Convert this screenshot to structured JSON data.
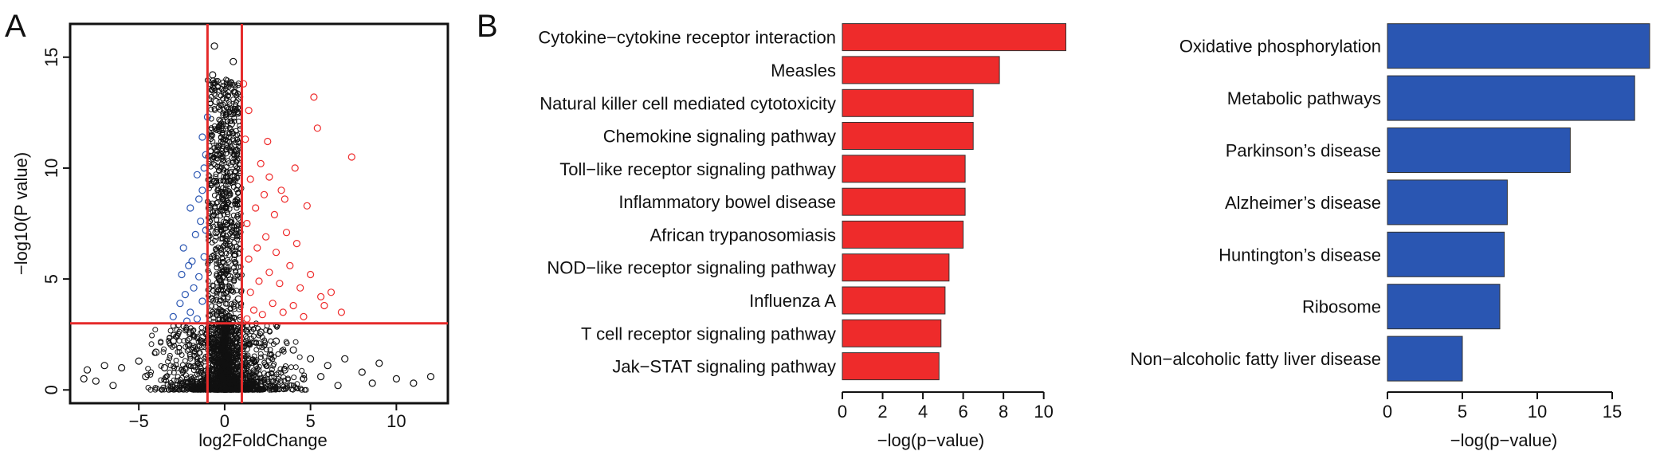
{
  "panel_labels": {
    "a": "A",
    "b": "B"
  },
  "colors": {
    "red": "#ee2b2b",
    "blue": "#2a56b2",
    "black": "#111111",
    "threshold": "#e52a2a"
  },
  "chart_data": [
    {
      "type": "scatter",
      "title": "",
      "xlabel": "log2FoldChange",
      "ylabel": "−log10(P value)",
      "xlim": [
        -9,
        13
      ],
      "ylim": [
        -0.6,
        16.5
      ],
      "xticks": [
        "−5",
        "0",
        "5",
        "10"
      ],
      "xtick_values": [
        -5,
        0,
        5,
        10
      ],
      "yticks": [
        "0",
        "5",
        "10",
        "15"
      ],
      "ytick_values": [
        0,
        5,
        10,
        15
      ],
      "thresholds": {
        "x": [
          -1,
          1
        ],
        "y": 3
      },
      "grid": false,
      "series": [
        {
          "role": "down",
          "color": "#2a56b2",
          "points": [
            [
              -1.6,
              3.2
            ],
            [
              -2.0,
              3.5
            ],
            [
              -1.3,
              4.0
            ],
            [
              -1.8,
              4.6
            ],
            [
              -2.3,
              4.3
            ],
            [
              -1.5,
              5.1
            ],
            [
              -2.1,
              5.6
            ],
            [
              -1.2,
              6.0
            ],
            [
              -2.4,
              6.4
            ],
            [
              -1.7,
              7.0
            ],
            [
              -1.4,
              7.6
            ],
            [
              -2.0,
              8.2
            ],
            [
              -1.3,
              9.0
            ],
            [
              -1.6,
              9.7
            ],
            [
              -1.1,
              10.6
            ],
            [
              -1.3,
              11.4
            ],
            [
              -1.0,
              12.3
            ],
            [
              -2.6,
              3.9
            ],
            [
              -3.0,
              3.3
            ],
            [
              -2.2,
              3.1
            ],
            [
              -1.9,
              5.8
            ],
            [
              -1.1,
              7.2
            ],
            [
              -1.5,
              8.6
            ],
            [
              -2.5,
              5.2
            ],
            [
              -1.2,
              10.0
            ]
          ]
        },
        {
          "role": "up",
          "color": "#ee2b2b",
          "points": [
            [
              1.3,
              3.2
            ],
            [
              1.7,
              3.6
            ],
            [
              2.2,
              3.4
            ],
            [
              2.8,
              3.9
            ],
            [
              3.4,
              3.5
            ],
            [
              4.0,
              3.8
            ],
            [
              4.6,
              3.3
            ],
            [
              1.5,
              4.4
            ],
            [
              2.0,
              4.9
            ],
            [
              2.6,
              5.3
            ],
            [
              3.2,
              4.8
            ],
            [
              3.8,
              5.6
            ],
            [
              4.4,
              4.6
            ],
            [
              5.0,
              5.2
            ],
            [
              5.6,
              4.2
            ],
            [
              1.4,
              5.9
            ],
            [
              1.9,
              6.4
            ],
            [
              2.4,
              6.9
            ],
            [
              3.0,
              6.2
            ],
            [
              3.6,
              7.1
            ],
            [
              4.2,
              6.6
            ],
            [
              1.3,
              7.5
            ],
            [
              1.8,
              8.2
            ],
            [
              2.3,
              8.8
            ],
            [
              2.9,
              7.9
            ],
            [
              3.5,
              8.6
            ],
            [
              1.5,
              9.5
            ],
            [
              2.1,
              10.2
            ],
            [
              1.2,
              11.3
            ],
            [
              1.4,
              12.6
            ],
            [
              1.1,
              13.8
            ],
            [
              2.6,
              9.6
            ],
            [
              3.3,
              9.0
            ],
            [
              4.8,
              8.3
            ],
            [
              4.1,
              10.0
            ],
            [
              6.2,
              4.4
            ],
            [
              5.2,
              13.2
            ],
            [
              5.4,
              11.8
            ],
            [
              7.4,
              10.5
            ],
            [
              2.5,
              11.2
            ],
            [
              6.8,
              3.5
            ],
            [
              5.8,
              3.8
            ]
          ]
        },
        {
          "role": "not-significant",
          "color": "#111111",
          "points": [
            [
              -0.6,
              15.5
            ],
            [
              -0.7,
              14.2
            ],
            [
              -0.5,
              13.0
            ],
            [
              -0.8,
              11.7
            ],
            [
              -0.4,
              10.6
            ],
            [
              -0.6,
              9.4
            ],
            [
              -0.9,
              8.2
            ],
            [
              -0.5,
              7.1
            ],
            [
              -0.7,
              6.0
            ],
            [
              -0.3,
              5.0
            ],
            [
              0.5,
              14.8
            ],
            [
              0.6,
              13.4
            ],
            [
              0.4,
              12.0
            ],
            [
              0.7,
              10.8
            ],
            [
              0.5,
              9.6
            ],
            [
              0.8,
              8.4
            ],
            [
              0.4,
              7.3
            ],
            [
              0.6,
              6.1
            ],
            [
              0.3,
              5.1
            ],
            [
              0.8,
              4.1
            ],
            [
              -0.8,
              4.1
            ],
            [
              -2.0,
              2.6
            ],
            [
              -3.0,
              2.2
            ],
            [
              -4.0,
              1.7
            ],
            [
              -5.0,
              1.3
            ],
            [
              -6.0,
              1.0
            ],
            [
              -7.0,
              1.1
            ],
            [
              -8.0,
              0.9
            ],
            [
              -8.2,
              0.5
            ],
            [
              2.1,
              2.6
            ],
            [
              3.0,
              2.2
            ],
            [
              4.0,
              1.8
            ],
            [
              5.0,
              1.4
            ],
            [
              6.0,
              1.1
            ],
            [
              7.0,
              1.4
            ],
            [
              8.0,
              0.8
            ],
            [
              9.0,
              1.2
            ],
            [
              10.0,
              0.5
            ],
            [
              11.0,
              0.3
            ],
            [
              12.0,
              0.6
            ],
            [
              -6.5,
              0.2
            ],
            [
              -7.5,
              0.4
            ],
            [
              6.6,
              0.2
            ],
            [
              5.6,
              0.6
            ],
            [
              8.6,
              0.3
            ],
            [
              -4.6,
              0.6
            ],
            [
              4.6,
              0.5
            ],
            [
              -3.5,
              1.0
            ],
            [
              3.5,
              0.9
            ]
          ]
        }
      ]
    },
    {
      "type": "bar",
      "orientation": "horizontal",
      "title": "",
      "xlabel": "−log(p−value)",
      "ylabel": "",
      "xlim": [
        0,
        11.2
      ],
      "xticks": [
        0,
        2,
        4,
        6,
        8,
        10
      ],
      "color": "#ee2b2b",
      "categories": [
        "Cytokine−cytokine receptor interaction",
        "Measles",
        "Natural killer cell mediated cytotoxicity",
        "Chemokine signaling pathway",
        "Toll−like receptor signaling pathway",
        "Inflammatory bowel disease",
        "African trypanosomiasis",
        "NOD−like receptor signaling pathway",
        "Influenza A",
        "T cell receptor signaling pathway",
        "Jak−STAT signaling pathway"
      ],
      "values": [
        11.1,
        7.8,
        6.5,
        6.5,
        6.1,
        6.1,
        6.0,
        5.3,
        5.1,
        4.9,
        4.8
      ]
    },
    {
      "type": "bar",
      "orientation": "horizontal",
      "title": "",
      "xlabel": "−log(p−value)",
      "ylabel": "",
      "xlim": [
        0,
        17.5
      ],
      "xticks": [
        0,
        5,
        10,
        15
      ],
      "color": "#2a56b2",
      "categories": [
        "Oxidative phosphorylation",
        "Metabolic pathways",
        "Parkinson’s disease",
        "Alzheimer’s disease",
        "Huntington’s disease",
        "Ribosome",
        "Non−alcoholic fatty liver disease"
      ],
      "values": [
        17.5,
        16.5,
        12.2,
        8.0,
        7.8,
        7.5,
        5.0
      ]
    }
  ]
}
